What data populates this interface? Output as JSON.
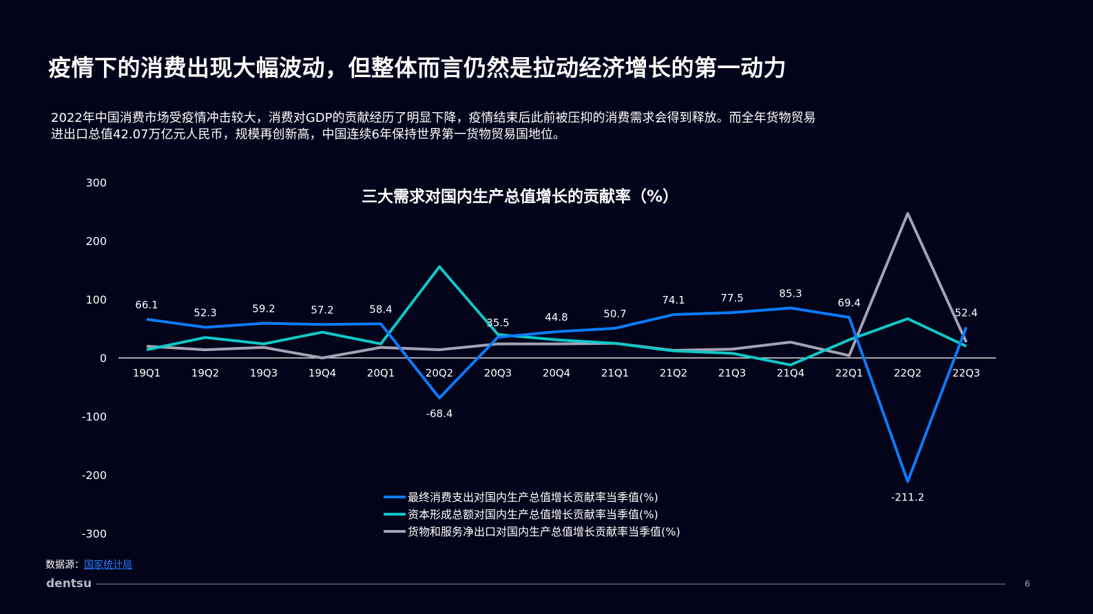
{
  "title": "疫情下的消费出现大幅波动，但整体而言仍然是拉动经济增长的第一动力",
  "description": "2022年中国消费市场受疫情冲击较大，消费对GDP的贡献经历了明显下降，疫情结束后此前被压抑的消费需求会得到释放。而全年货物贸易进出口总值42.07万亿元人民币，规模再创新高，中国连续6年保持世界第一货物贸易国地位。",
  "source_label": "数据源：",
  "source_link": "国家统计局",
  "brand": "dentsu",
  "page_number": "6",
  "chart_data": {
    "type": "line",
    "title": "三大需求对国内生产总值增长的贡献率（%）",
    "categories": [
      "19Q1",
      "19Q2",
      "19Q3",
      "19Q4",
      "20Q1",
      "20Q2",
      "20Q3",
      "20Q4",
      "21Q1",
      "21Q2",
      "21Q3",
      "21Q4",
      "22Q1",
      "22Q2",
      "22Q3"
    ],
    "ylim": [
      -300,
      300
    ],
    "yticks": [
      300,
      200,
      100,
      0,
      -100,
      -200,
      -300
    ],
    "legend_position": "bottom",
    "series": [
      {
        "name": "最终消费支出对国内生产总值增长贡献率当季值(%)",
        "color": "#0a7cff",
        "labeled": true,
        "values": [
          66.1,
          52.3,
          59.2,
          57.2,
          58.4,
          -68.4,
          35.5,
          44.8,
          50.7,
          74.1,
          77.5,
          85.3,
          69.4,
          -211.2,
          52.4
        ]
      },
      {
        "name": "资本形成总额对国内生产总值增长贡献率当季值(%)",
        "color": "#10c8c8",
        "labeled": false,
        "values": [
          14,
          35,
          24,
          44,
          24,
          156,
          40,
          31,
          25,
          12,
          8,
          -12,
          31,
          67,
          20
        ]
      },
      {
        "name": "货物和服务净出口对国内生产总值增长贡献率当季值(%)",
        "color": "#a4a4b4",
        "labeled": false,
        "values": [
          20,
          14,
          18,
          0,
          18,
          14,
          24,
          24,
          25,
          13,
          15,
          27,
          4,
          247,
          27
        ]
      }
    ]
  }
}
